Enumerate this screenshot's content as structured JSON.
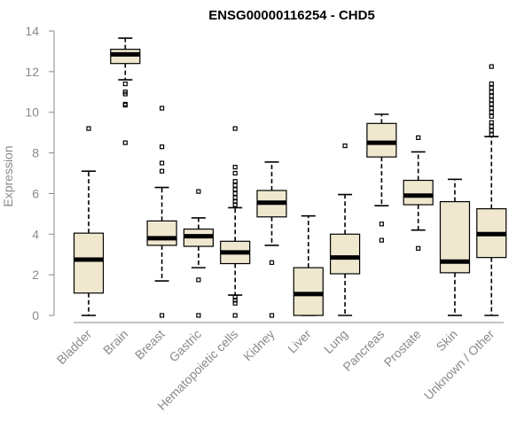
{
  "chart_data": {
    "type": "boxplot",
    "title": "ENSG00000116254 - CHD5",
    "xlabel": "",
    "ylabel": "Expression",
    "ylim": [
      0,
      14
    ],
    "yticks": [
      0,
      2,
      4,
      6,
      8,
      10,
      12,
      14
    ],
    "box_color": "#efe8cf",
    "categories": [
      "Bladder",
      "Brain",
      "Breast",
      "Gastric",
      "Hematopoietic cells",
      "Kidney",
      "Liver",
      "Lung",
      "Pancreas",
      "Prostate",
      "Skin",
      "Unknown / Other"
    ],
    "series": [
      {
        "name": "Bladder",
        "min": 0,
        "q1": 1.1,
        "median": 2.75,
        "q3": 4.05,
        "max": 7.1,
        "outliers": [
          9.2
        ]
      },
      {
        "name": "Brain",
        "min": 11.6,
        "q1": 12.4,
        "median": 12.85,
        "q3": 13.1,
        "max": 13.65,
        "outliers": [
          11.4,
          11.0,
          10.9,
          10.4,
          10.35,
          8.5
        ]
      },
      {
        "name": "Breast",
        "min": 1.7,
        "q1": 3.45,
        "median": 3.8,
        "q3": 4.65,
        "max": 6.3,
        "outliers": [
          10.2,
          8.3,
          7.5,
          7.1,
          0
        ]
      },
      {
        "name": "Gastric",
        "min": 2.35,
        "q1": 3.4,
        "median": 3.9,
        "q3": 4.25,
        "max": 4.8,
        "outliers": [
          6.1,
          1.75,
          0
        ]
      },
      {
        "name": "Hematopoietic cells",
        "min": 1.0,
        "q1": 2.55,
        "median": 3.1,
        "q3": 3.65,
        "max": 5.3,
        "outliers": [
          9.2,
          7.3,
          7.0,
          6.6,
          6.4,
          6.2,
          6.0,
          5.8,
          5.6,
          5.45,
          0.9,
          0.75,
          0.6,
          0
        ]
      },
      {
        "name": "Kidney",
        "min": 3.45,
        "q1": 4.85,
        "median": 5.55,
        "q3": 6.15,
        "max": 7.55,
        "outliers": [
          2.6,
          0
        ]
      },
      {
        "name": "Liver",
        "min": 0,
        "q1": 0,
        "median": 1.05,
        "q3": 2.35,
        "max": 4.9,
        "outliers": []
      },
      {
        "name": "Lung",
        "min": 0,
        "q1": 2.05,
        "median": 2.85,
        "q3": 4.0,
        "max": 5.95,
        "outliers": [
          8.35
        ]
      },
      {
        "name": "Pancreas",
        "min": 5.4,
        "q1": 7.8,
        "median": 8.5,
        "q3": 9.45,
        "max": 9.9,
        "outliers": [
          4.5,
          3.7
        ]
      },
      {
        "name": "Prostate",
        "min": 4.2,
        "q1": 5.45,
        "median": 5.9,
        "q3": 6.65,
        "max": 8.05,
        "outliers": [
          8.75,
          3.3
        ]
      },
      {
        "name": "Skin",
        "min": 0,
        "q1": 2.1,
        "median": 2.65,
        "q3": 5.6,
        "max": 6.7,
        "outliers": []
      },
      {
        "name": "Unknown / Other",
        "min": 0,
        "q1": 2.85,
        "median": 4.0,
        "q3": 5.25,
        "max": 8.8,
        "outliers": [
          12.25,
          11.4,
          11.2,
          11.0,
          10.8,
          10.6,
          10.4,
          10.2,
          10.0,
          9.8,
          9.5,
          9.3,
          9.1,
          8.9
        ]
      }
    ]
  }
}
